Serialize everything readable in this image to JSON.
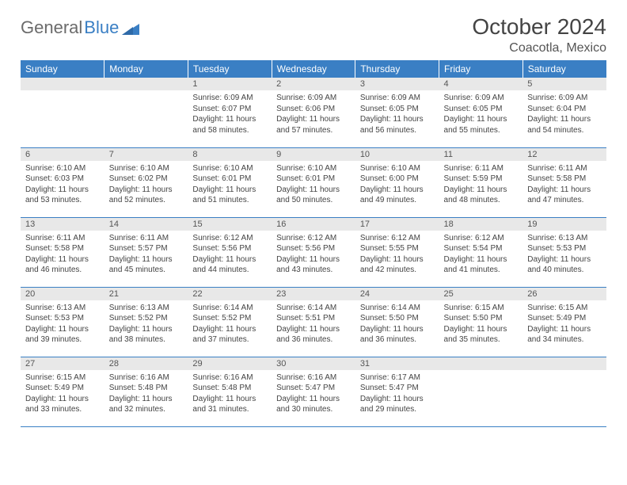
{
  "brand": {
    "part1": "General",
    "part2": "Blue"
  },
  "title": "October 2024",
  "location": "Coacotla, Mexico",
  "colors": {
    "header_bg": "#3a7fc4",
    "header_fg": "#ffffff",
    "daynum_bg": "#e8e8e8",
    "row_border": "#3a7fc4",
    "text": "#444444",
    "background": "#ffffff"
  },
  "weekdays": [
    "Sunday",
    "Monday",
    "Tuesday",
    "Wednesday",
    "Thursday",
    "Friday",
    "Saturday"
  ],
  "grid": [
    [
      null,
      null,
      {
        "n": "1",
        "sr": "6:09 AM",
        "ss": "6:07 PM",
        "dl": "11 hours and 58 minutes."
      },
      {
        "n": "2",
        "sr": "6:09 AM",
        "ss": "6:06 PM",
        "dl": "11 hours and 57 minutes."
      },
      {
        "n": "3",
        "sr": "6:09 AM",
        "ss": "6:05 PM",
        "dl": "11 hours and 56 minutes."
      },
      {
        "n": "4",
        "sr": "6:09 AM",
        "ss": "6:05 PM",
        "dl": "11 hours and 55 minutes."
      },
      {
        "n": "5",
        "sr": "6:09 AM",
        "ss": "6:04 PM",
        "dl": "11 hours and 54 minutes."
      }
    ],
    [
      {
        "n": "6",
        "sr": "6:10 AM",
        "ss": "6:03 PM",
        "dl": "11 hours and 53 minutes."
      },
      {
        "n": "7",
        "sr": "6:10 AM",
        "ss": "6:02 PM",
        "dl": "11 hours and 52 minutes."
      },
      {
        "n": "8",
        "sr": "6:10 AM",
        "ss": "6:01 PM",
        "dl": "11 hours and 51 minutes."
      },
      {
        "n": "9",
        "sr": "6:10 AM",
        "ss": "6:01 PM",
        "dl": "11 hours and 50 minutes."
      },
      {
        "n": "10",
        "sr": "6:10 AM",
        "ss": "6:00 PM",
        "dl": "11 hours and 49 minutes."
      },
      {
        "n": "11",
        "sr": "6:11 AM",
        "ss": "5:59 PM",
        "dl": "11 hours and 48 minutes."
      },
      {
        "n": "12",
        "sr": "6:11 AM",
        "ss": "5:58 PM",
        "dl": "11 hours and 47 minutes."
      }
    ],
    [
      {
        "n": "13",
        "sr": "6:11 AM",
        "ss": "5:58 PM",
        "dl": "11 hours and 46 minutes."
      },
      {
        "n": "14",
        "sr": "6:11 AM",
        "ss": "5:57 PM",
        "dl": "11 hours and 45 minutes."
      },
      {
        "n": "15",
        "sr": "6:12 AM",
        "ss": "5:56 PM",
        "dl": "11 hours and 44 minutes."
      },
      {
        "n": "16",
        "sr": "6:12 AM",
        "ss": "5:56 PM",
        "dl": "11 hours and 43 minutes."
      },
      {
        "n": "17",
        "sr": "6:12 AM",
        "ss": "5:55 PM",
        "dl": "11 hours and 42 minutes."
      },
      {
        "n": "18",
        "sr": "6:12 AM",
        "ss": "5:54 PM",
        "dl": "11 hours and 41 minutes."
      },
      {
        "n": "19",
        "sr": "6:13 AM",
        "ss": "5:53 PM",
        "dl": "11 hours and 40 minutes."
      }
    ],
    [
      {
        "n": "20",
        "sr": "6:13 AM",
        "ss": "5:53 PM",
        "dl": "11 hours and 39 minutes."
      },
      {
        "n": "21",
        "sr": "6:13 AM",
        "ss": "5:52 PM",
        "dl": "11 hours and 38 minutes."
      },
      {
        "n": "22",
        "sr": "6:14 AM",
        "ss": "5:52 PM",
        "dl": "11 hours and 37 minutes."
      },
      {
        "n": "23",
        "sr": "6:14 AM",
        "ss": "5:51 PM",
        "dl": "11 hours and 36 minutes."
      },
      {
        "n": "24",
        "sr": "6:14 AM",
        "ss": "5:50 PM",
        "dl": "11 hours and 36 minutes."
      },
      {
        "n": "25",
        "sr": "6:15 AM",
        "ss": "5:50 PM",
        "dl": "11 hours and 35 minutes."
      },
      {
        "n": "26",
        "sr": "6:15 AM",
        "ss": "5:49 PM",
        "dl": "11 hours and 34 minutes."
      }
    ],
    [
      {
        "n": "27",
        "sr": "6:15 AM",
        "ss": "5:49 PM",
        "dl": "11 hours and 33 minutes."
      },
      {
        "n": "28",
        "sr": "6:16 AM",
        "ss": "5:48 PM",
        "dl": "11 hours and 32 minutes."
      },
      {
        "n": "29",
        "sr": "6:16 AM",
        "ss": "5:48 PM",
        "dl": "11 hours and 31 minutes."
      },
      {
        "n": "30",
        "sr": "6:16 AM",
        "ss": "5:47 PM",
        "dl": "11 hours and 30 minutes."
      },
      {
        "n": "31",
        "sr": "6:17 AM",
        "ss": "5:47 PM",
        "dl": "11 hours and 29 minutes."
      },
      null,
      null
    ]
  ],
  "labels": {
    "sunrise": "Sunrise:",
    "sunset": "Sunset:",
    "daylight": "Daylight:"
  }
}
